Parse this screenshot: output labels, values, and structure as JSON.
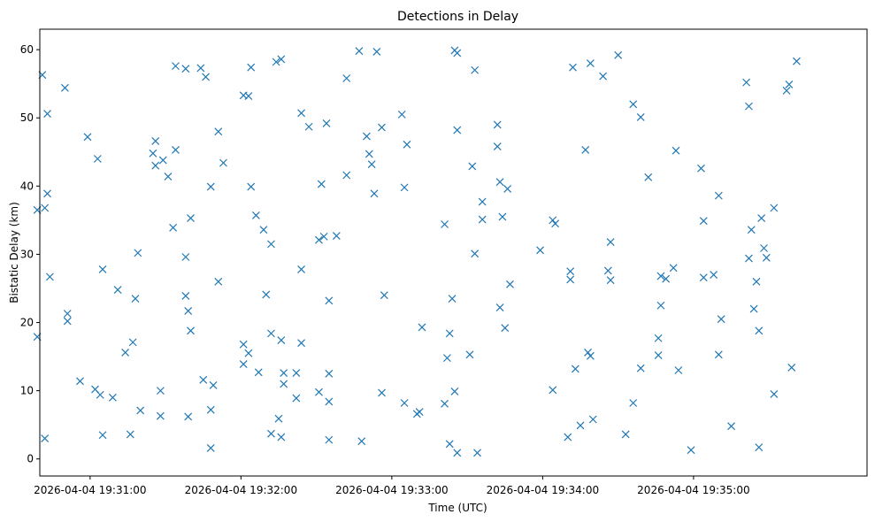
{
  "chart_data": {
    "type": "scatter",
    "title": "Detections in Delay",
    "xlabel": "Time (UTC)",
    "ylabel": "Bistatic Delay (km)",
    "x_ticks": [
      "2026-04-04 19:31:00",
      "2026-04-04 19:32:00",
      "2026-04-04 19:33:00",
      "2026-04-04 19:34:00",
      "2026-04-04 19:35:00"
    ],
    "y_ticks": [
      0,
      10,
      20,
      30,
      40,
      50,
      60
    ],
    "x_range_seconds_from_tick0": [
      -20,
      309
    ],
    "ylim": [
      -2.5,
      63
    ],
    "grid": false,
    "marker": "x",
    "color": "#1f77b4",
    "points": [
      {
        "t": "19:30:39",
        "y": 36.5
      },
      {
        "t": "19:30:39",
        "y": 17.9
      },
      {
        "t": "19:30:41",
        "y": 56.3
      },
      {
        "t": "19:30:42",
        "y": 36.8
      },
      {
        "t": "19:30:42",
        "y": 3.0
      },
      {
        "t": "19:30:43",
        "y": 50.6
      },
      {
        "t": "19:30:43",
        "y": 38.9
      },
      {
        "t": "19:30:44",
        "y": 26.7
      },
      {
        "t": "19:30:50",
        "y": 54.4
      },
      {
        "t": "19:30:51",
        "y": 21.3
      },
      {
        "t": "19:30:51",
        "y": 20.2
      },
      {
        "t": "19:30:56",
        "y": 11.4
      },
      {
        "t": "19:30:59",
        "y": 47.2
      },
      {
        "t": "19:31:02",
        "y": 10.2
      },
      {
        "t": "19:31:03",
        "y": 44.0
      },
      {
        "t": "19:31:04",
        "y": 9.4
      },
      {
        "t": "19:31:05",
        "y": 3.5
      },
      {
        "t": "19:31:05",
        "y": 27.8
      },
      {
        "t": "19:31:09",
        "y": 9.0
      },
      {
        "t": "19:31:11",
        "y": 24.8
      },
      {
        "t": "19:31:14",
        "y": 15.6
      },
      {
        "t": "19:31:16",
        "y": 3.6
      },
      {
        "t": "19:31:17",
        "y": 17.1
      },
      {
        "t": "19:31:19",
        "y": 30.2
      },
      {
        "t": "19:31:18",
        "y": 23.5
      },
      {
        "t": "19:31:20",
        "y": 7.1
      },
      {
        "t": "19:31:25",
        "y": 44.8
      },
      {
        "t": "19:31:26",
        "y": 46.6
      },
      {
        "t": "19:31:26",
        "y": 43.0
      },
      {
        "t": "19:31:28",
        "y": 10.0
      },
      {
        "t": "19:31:28",
        "y": 6.3
      },
      {
        "t": "19:31:29",
        "y": 43.8
      },
      {
        "t": "19:31:31",
        "y": 41.4
      },
      {
        "t": "19:31:33",
        "y": 33.9
      },
      {
        "t": "19:31:34",
        "y": 57.6
      },
      {
        "t": "19:31:34",
        "y": 45.3
      },
      {
        "t": "19:31:38",
        "y": 57.2
      },
      {
        "t": "19:31:38",
        "y": 29.6
      },
      {
        "t": "19:31:39",
        "y": 6.2
      },
      {
        "t": "19:31:38",
        "y": 23.9
      },
      {
        "t": "19:31:39",
        "y": 21.7
      },
      {
        "t": "19:31:40",
        "y": 18.8
      },
      {
        "t": "19:31:40",
        "y": 35.3
      },
      {
        "t": "19:31:44",
        "y": 57.3
      },
      {
        "t": "19:31:45",
        "y": 11.6
      },
      {
        "t": "19:31:46",
        "y": 56.0
      },
      {
        "t": "19:31:48",
        "y": 39.9
      },
      {
        "t": "19:31:48",
        "y": 7.2
      },
      {
        "t": "19:31:48",
        "y": 1.6
      },
      {
        "t": "19:31:49",
        "y": 10.8
      },
      {
        "t": "19:31:51",
        "y": 48.0
      },
      {
        "t": "19:31:51",
        "y": 26.0
      },
      {
        "t": "19:31:53",
        "y": 43.4
      },
      {
        "t": "19:32:01",
        "y": 53.3
      },
      {
        "t": "19:32:01",
        "y": 16.8
      },
      {
        "t": "19:32:01",
        "y": 13.9
      },
      {
        "t": "19:32:03",
        "y": 53.2
      },
      {
        "t": "19:32:04",
        "y": 57.4
      },
      {
        "t": "19:32:04",
        "y": 39.9
      },
      {
        "t": "19:32:03",
        "y": 15.5
      },
      {
        "t": "19:32:06",
        "y": 35.7
      },
      {
        "t": "19:32:07",
        "y": 12.7
      },
      {
        "t": "19:32:09",
        "y": 33.6
      },
      {
        "t": "19:32:10",
        "y": 24.1
      },
      {
        "t": "19:32:12",
        "y": 31.5
      },
      {
        "t": "19:32:12",
        "y": 18.4
      },
      {
        "t": "19:32:12",
        "y": 3.7
      },
      {
        "t": "19:32:14",
        "y": 58.2
      },
      {
        "t": "19:32:15",
        "y": 5.9
      },
      {
        "t": "19:32:16",
        "y": 58.6
      },
      {
        "t": "19:32:16",
        "y": 17.4
      },
      {
        "t": "19:32:16",
        "y": 3.2
      },
      {
        "t": "19:32:17",
        "y": 12.6
      },
      {
        "t": "19:32:17",
        "y": 11.0
      },
      {
        "t": "19:32:22",
        "y": 12.6
      },
      {
        "t": "19:32:22",
        "y": 8.9
      },
      {
        "t": "19:32:24",
        "y": 50.7
      },
      {
        "t": "19:32:24",
        "y": 27.8
      },
      {
        "t": "19:32:24",
        "y": 17.0
      },
      {
        "t": "19:32:27",
        "y": 48.7
      },
      {
        "t": "19:32:31",
        "y": 32.1
      },
      {
        "t": "19:32:31",
        "y": 9.8
      },
      {
        "t": "19:32:32",
        "y": 40.3
      },
      {
        "t": "19:32:33",
        "y": 32.6
      },
      {
        "t": "19:32:34",
        "y": 49.2
      },
      {
        "t": "19:32:35",
        "y": 2.8
      },
      {
        "t": "19:32:35",
        "y": 23.2
      },
      {
        "t": "19:32:35",
        "y": 12.5
      },
      {
        "t": "19:32:35",
        "y": 8.4
      },
      {
        "t": "19:32:38",
        "y": 32.7
      },
      {
        "t": "19:32:42",
        "y": 41.6
      },
      {
        "t": "19:32:42",
        "y": 55.8
      },
      {
        "t": "19:32:47",
        "y": 59.8
      },
      {
        "t": "19:32:48",
        "y": 2.6
      },
      {
        "t": "19:32:50",
        "y": 47.3
      },
      {
        "t": "19:32:51",
        "y": 44.7
      },
      {
        "t": "19:32:52",
        "y": 43.2
      },
      {
        "t": "19:32:53",
        "y": 38.9
      },
      {
        "t": "19:32:54",
        "y": 59.7
      },
      {
        "t": "19:32:56",
        "y": 48.6
      },
      {
        "t": "19:32:57",
        "y": 24.0
      },
      {
        "t": "19:32:56",
        "y": 9.7
      },
      {
        "t": "19:33:04",
        "y": 50.5
      },
      {
        "t": "19:33:05",
        "y": 39.8
      },
      {
        "t": "19:33:06",
        "y": 46.1
      },
      {
        "t": "19:33:05",
        "y": 8.2
      },
      {
        "t": "19:33:10",
        "y": 6.6
      },
      {
        "t": "19:33:11",
        "y": 6.9
      },
      {
        "t": "19:33:12",
        "y": 19.3
      },
      {
        "t": "19:33:21",
        "y": 34.4
      },
      {
        "t": "19:33:21",
        "y": 8.1
      },
      {
        "t": "19:33:22",
        "y": 14.8
      },
      {
        "t": "19:33:23",
        "y": 18.4
      },
      {
        "t": "19:33:23",
        "y": 2.2
      },
      {
        "t": "19:33:24",
        "y": 23.5
      },
      {
        "t": "19:33:25",
        "y": 9.9
      },
      {
        "t": "19:33:25",
        "y": 59.9
      },
      {
        "t": "19:33:26",
        "y": 59.5
      },
      {
        "t": "19:33:26",
        "y": 48.2
      },
      {
        "t": "19:33:26",
        "y": 0.9
      },
      {
        "t": "19:33:31",
        "y": 15.3
      },
      {
        "t": "19:33:32",
        "y": 42.9
      },
      {
        "t": "19:33:33",
        "y": 57.0
      },
      {
        "t": "19:33:33",
        "y": 30.1
      },
      {
        "t": "19:33:34",
        "y": 0.9
      },
      {
        "t": "19:33:36",
        "y": 37.7
      },
      {
        "t": "19:33:36",
        "y": 35.1
      },
      {
        "t": "19:33:42",
        "y": 49.0
      },
      {
        "t": "19:33:42",
        "y": 45.8
      },
      {
        "t": "19:33:43",
        "y": 40.6
      },
      {
        "t": "19:33:43",
        "y": 22.2
      },
      {
        "t": "19:33:44",
        "y": 35.5
      },
      {
        "t": "19:33:45",
        "y": 19.2
      },
      {
        "t": "19:33:46",
        "y": 39.6
      },
      {
        "t": "19:33:47",
        "y": 25.6
      },
      {
        "t": "19:33:59",
        "y": 30.6
      },
      {
        "t": "19:34:04",
        "y": 35.0
      },
      {
        "t": "19:34:04",
        "y": 10.1
      },
      {
        "t": "19:34:05",
        "y": 34.5
      },
      {
        "t": "19:34:10",
        "y": 3.2
      },
      {
        "t": "19:34:11",
        "y": 26.3
      },
      {
        "t": "19:34:11",
        "y": 27.5
      },
      {
        "t": "19:34:12",
        "y": 57.4
      },
      {
        "t": "19:34:13",
        "y": 13.2
      },
      {
        "t": "19:34:15",
        "y": 4.9
      },
      {
        "t": "19:34:17",
        "y": 45.3
      },
      {
        "t": "19:34:18",
        "y": 15.6
      },
      {
        "t": "19:34:19",
        "y": 15.1
      },
      {
        "t": "19:34:19",
        "y": 58.0
      },
      {
        "t": "19:34:20",
        "y": 5.8
      },
      {
        "t": "19:34:24",
        "y": 56.1
      },
      {
        "t": "19:34:26",
        "y": 27.6
      },
      {
        "t": "19:34:27",
        "y": 26.2
      },
      {
        "t": "19:34:27",
        "y": 31.8
      },
      {
        "t": "19:34:30",
        "y": 59.2
      },
      {
        "t": "19:34:33",
        "y": 3.6
      },
      {
        "t": "19:34:36",
        "y": 52.0
      },
      {
        "t": "19:34:36",
        "y": 8.2
      },
      {
        "t": "19:34:39",
        "y": 50.1
      },
      {
        "t": "19:34:39",
        "y": 13.3
      },
      {
        "t": "19:34:42",
        "y": 41.3
      },
      {
        "t": "19:34:46",
        "y": 17.7
      },
      {
        "t": "19:34:46",
        "y": 15.2
      },
      {
        "t": "19:34:47",
        "y": 26.8
      },
      {
        "t": "19:34:47",
        "y": 22.5
      },
      {
        "t": "19:34:49",
        "y": 26.4
      },
      {
        "t": "19:34:52",
        "y": 28.0
      },
      {
        "t": "19:34:53",
        "y": 45.2
      },
      {
        "t": "19:34:54",
        "y": 13.0
      },
      {
        "t": "19:34:59",
        "y": 1.3
      },
      {
        "t": "19:35:03",
        "y": 42.6
      },
      {
        "t": "19:35:04",
        "y": 34.9
      },
      {
        "t": "19:35:04",
        "y": 26.6
      },
      {
        "t": "19:35:08",
        "y": 27.0
      },
      {
        "t": "19:35:10",
        "y": 38.6
      },
      {
        "t": "19:35:11",
        "y": 20.5
      },
      {
        "t": "19:35:10",
        "y": 15.3
      },
      {
        "t": "19:35:15",
        "y": 4.8
      },
      {
        "t": "19:35:21",
        "y": 55.2
      },
      {
        "t": "19:35:22",
        "y": 51.7
      },
      {
        "t": "19:35:22",
        "y": 29.4
      },
      {
        "t": "19:35:23",
        "y": 33.6
      },
      {
        "t": "19:35:24",
        "y": 22.0
      },
      {
        "t": "19:35:25",
        "y": 26.0
      },
      {
        "t": "19:35:26",
        "y": 18.8
      },
      {
        "t": "19:35:26",
        "y": 1.7
      },
      {
        "t": "19:35:27",
        "y": 35.3
      },
      {
        "t": "19:35:28",
        "y": 30.9
      },
      {
        "t": "19:35:29",
        "y": 29.5
      },
      {
        "t": "19:35:32",
        "y": 36.8
      },
      {
        "t": "19:35:32",
        "y": 9.5
      },
      {
        "t": "19:35:37",
        "y": 54.0
      },
      {
        "t": "19:35:38",
        "y": 54.9
      },
      {
        "t": "19:35:39",
        "y": 13.4
      },
      {
        "t": "19:35:41",
        "y": 58.3
      }
    ]
  }
}
